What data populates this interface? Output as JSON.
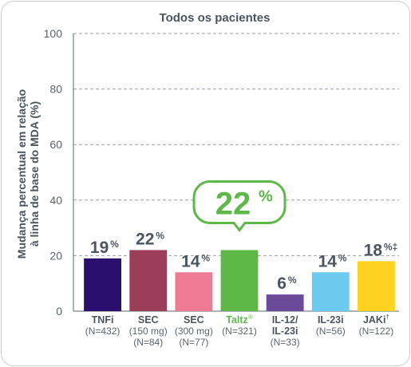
{
  "chart_data": {
    "type": "bar",
    "title": "Todos os pacientes",
    "ylabel_lines": [
      "Mudança percentual em relação",
      "à linha de base do MDA (%)"
    ],
    "ylim": [
      0,
      100
    ],
    "yticks": [
      "0",
      "20",
      "40",
      "60",
      "80",
      "100"
    ],
    "ytick_values": [
      0,
      20,
      40,
      60,
      80,
      100
    ],
    "grid": true,
    "categories": [
      {
        "name": "TNFi",
        "sub": [
          "(N=432)"
        ]
      },
      {
        "name": "SEC",
        "sub": [
          "(150 mg)",
          "(N=84)"
        ]
      },
      {
        "name": "SEC",
        "sub": [
          "(300 mg)",
          "(N=77)"
        ]
      },
      {
        "name": "Taltz",
        "mark": "®",
        "sub": [
          "(N=321)"
        ],
        "highlight": true
      },
      {
        "name": "IL-12/",
        "name2": "IL-23i",
        "sub": [
          "(N=33)"
        ]
      },
      {
        "name": "IL-23i",
        "sub": [
          "(N=56)"
        ]
      },
      {
        "name": "JAKi",
        "mark": "†",
        "sub": [
          "(N=122)"
        ]
      }
    ],
    "values": [
      19,
      22,
      14,
      22,
      6,
      14,
      18
    ],
    "value_labels": [
      "19",
      "22",
      "14",
      "",
      "6",
      "14",
      "18"
    ],
    "value_suffix": "%",
    "value_marks": [
      "",
      "",
      "",
      "",
      "",
      "",
      "‡"
    ],
    "colors": [
      "#2b0f6e",
      "#9c3d5a",
      "#ee7b93",
      "#5db848",
      "#6b4a9a",
      "#6ccaf0",
      "#ffd21f"
    ],
    "callout": {
      "value": "22",
      "suffix": "%"
    }
  }
}
